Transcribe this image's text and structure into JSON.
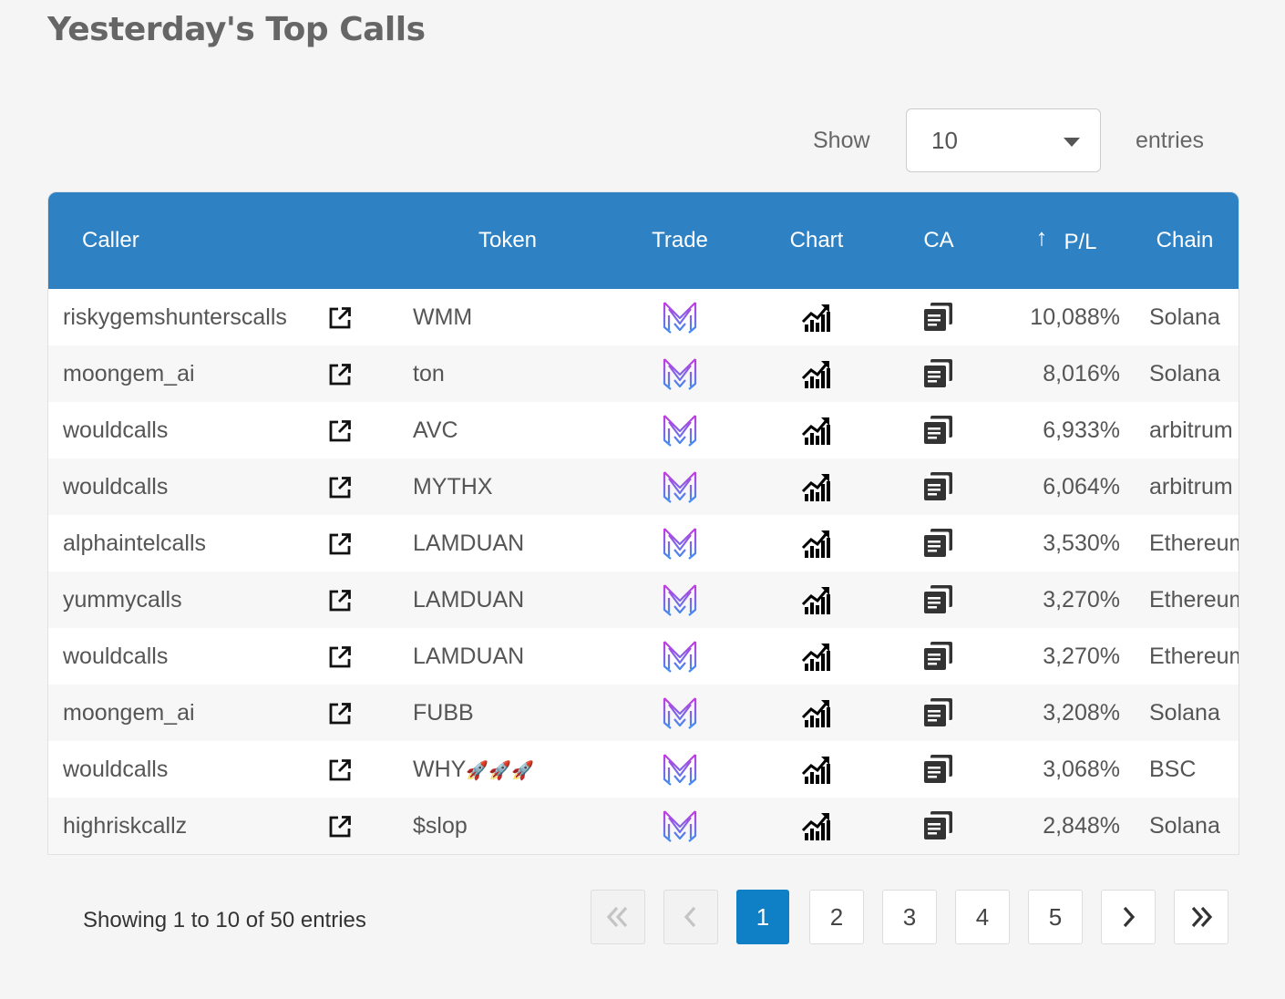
{
  "page": {
    "title": "Yesterday's Top Calls"
  },
  "length_menu": {
    "show_label": "Show",
    "selected": "10",
    "entries_label": "entries"
  },
  "table": {
    "columns": [
      "Caller",
      "",
      "Token",
      "Trade",
      "Chart",
      "CA",
      "P/L",
      "Chain"
    ],
    "sort": {
      "column": "P/L",
      "indicator": "↑"
    },
    "rows": [
      {
        "caller": "riskygemshunterscalls",
        "token": "WMM",
        "token_emoji": "",
        "pl": "10,088%",
        "chain": "Solana"
      },
      {
        "caller": "moongem_ai",
        "token": "ton",
        "token_emoji": "",
        "pl": "8,016%",
        "chain": "Solana"
      },
      {
        "caller": "wouldcalls",
        "token": "AVC",
        "token_emoji": "",
        "pl": "6,933%",
        "chain": "arbitrum"
      },
      {
        "caller": "wouldcalls",
        "token": "MYTHX",
        "token_emoji": "",
        "pl": "6,064%",
        "chain": "arbitrum"
      },
      {
        "caller": "alphaintelcalls",
        "token": "LAMDUAN",
        "token_emoji": "",
        "pl": "3,530%",
        "chain": "Ethereum"
      },
      {
        "caller": "yummycalls",
        "token": "LAMDUAN",
        "token_emoji": "",
        "pl": "3,270%",
        "chain": "Ethereum"
      },
      {
        "caller": "wouldcalls",
        "token": "LAMDUAN",
        "token_emoji": "",
        "pl": "3,270%",
        "chain": "Ethereum"
      },
      {
        "caller": "moongem_ai",
        "token": "FUBB",
        "token_emoji": "",
        "pl": "3,208%",
        "chain": "Solana"
      },
      {
        "caller": "wouldcalls",
        "token": "WHY",
        "token_emoji": "🚀🚀🚀",
        "pl": "3,068%",
        "chain": "BSC"
      },
      {
        "caller": "highriskcallz",
        "token": "$slop",
        "token_emoji": "",
        "pl": "2,848%",
        "chain": "Solana"
      }
    ]
  },
  "icons": {
    "caller_link": "external-link-icon",
    "trade": "trade-logo-icon",
    "chart": "chart-icon",
    "ca": "copy-icon"
  },
  "colors": {
    "header": "#2e81c3",
    "active_page": "#0f7fc6",
    "trade_gradient": [
      "#c43ae0",
      "#3e8ef0"
    ]
  },
  "footer": {
    "info": "Showing 1 to 10 of 50 entries",
    "pages": [
      "1",
      "2",
      "3",
      "4",
      "5"
    ],
    "current_page": "1",
    "first_icon": "double-chevron-left-icon",
    "prev_icon": "chevron-left-icon",
    "next_icon": "chevron-right-icon",
    "last_icon": "double-chevron-right-icon"
  }
}
